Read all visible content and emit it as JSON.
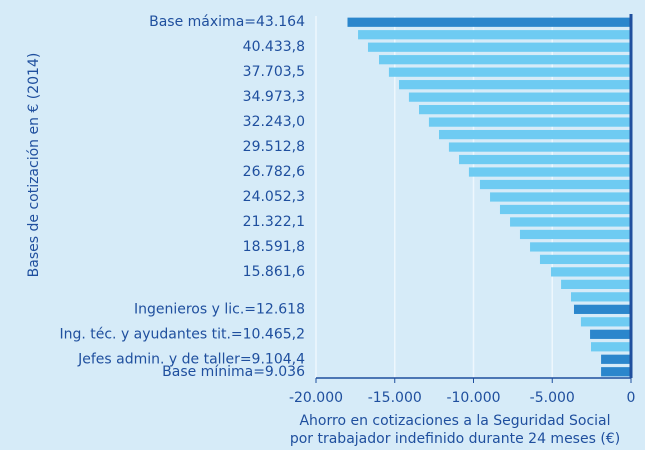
{
  "chart_data": {
    "type": "bar",
    "orientation": "horizontal",
    "ylabel": "Bases de cotización en €  (2014)",
    "xlabel": [
      "Ahorro en cotizaciones a la Seguridad Social",
      "por trabajador indefinido durante 24 meses (€)"
    ],
    "categories": [
      "Base máxima=43.164",
      null,
      "40.433,8",
      null,
      "37.703,5",
      null,
      "34.973,3",
      null,
      "32.243,0",
      null,
      "29.512,8",
      null,
      "26.782,6",
      null,
      "24.052,3",
      null,
      "21.322,1",
      null,
      "18.591,8",
      null,
      "15.861,6",
      null,
      null,
      "Ingenieros y lic.=12.618",
      null,
      "Ing. téc. y ayudantes tit.=10.465,2",
      null,
      "Jefes admin. y de taller=9.104,4",
      "Base mínima=9.036"
    ],
    "values": [
      -18000,
      -17330,
      -16700,
      -16000,
      -15370,
      -14730,
      -14100,
      -13460,
      -12830,
      -12190,
      -11560,
      -10920,
      -10290,
      -9590,
      -8950,
      -8320,
      -7680,
      -7050,
      -6410,
      -5780,
      -5080,
      -4440,
      -3810,
      -3620,
      -3180,
      -2600,
      -2540,
      -1900,
      -1900
    ],
    "colors": [
      "#2b86cc",
      "#6ecbf2",
      "#6ecbf2",
      "#6ecbf2",
      "#6ecbf2",
      "#6ecbf2",
      "#6ecbf2",
      "#6ecbf2",
      "#6ecbf2",
      "#6ecbf2",
      "#6ecbf2",
      "#6ecbf2",
      "#6ecbf2",
      "#6ecbf2",
      "#6ecbf2",
      "#6ecbf2",
      "#6ecbf2",
      "#6ecbf2",
      "#6ecbf2",
      "#6ecbf2",
      "#6ecbf2",
      "#6ecbf2",
      "#6ecbf2",
      "#2b86cc",
      "#6ecbf2",
      "#2b86cc",
      "#6ecbf2",
      "#2b86cc",
      "#2b86cc"
    ],
    "xlim": [
      -20000,
      0
    ],
    "xticks": [
      {
        "value": -20000,
        "label": "-20.000"
      },
      {
        "value": -15000,
        "label": "-15.000"
      },
      {
        "value": -10000,
        "label": "-10.000"
      },
      {
        "value": -5000,
        "label": "-5.000"
      },
      0
    ],
    "grid": true
  }
}
